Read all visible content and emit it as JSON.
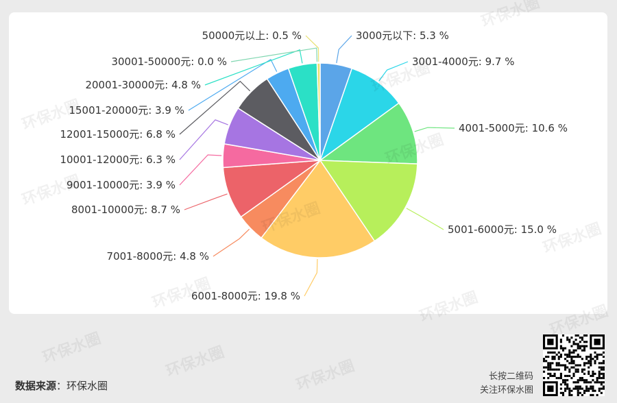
{
  "chart_data": {
    "type": "pie",
    "slices": [
      {
        "label": "3000元以下",
        "value": 5.3,
        "color": "#5ba5e8"
      },
      {
        "label": "3001-4000元",
        "value": 9.7,
        "color": "#2bd6e8"
      },
      {
        "label": "4001-5000元",
        "value": 10.6,
        "color": "#6ee57f"
      },
      {
        "label": "5001-6000元",
        "value": 15.0,
        "color": "#b7ef5b"
      },
      {
        "label": "6001-8000元",
        "value": 19.8,
        "color": "#ffcc66"
      },
      {
        "label": "7001-8000元",
        "value": 4.8,
        "color": "#f78b5f"
      },
      {
        "label": "8001-10000元",
        "value": 8.7,
        "color": "#ec6369"
      },
      {
        "label": "9001-10000元",
        "value": 3.9,
        "color": "#f56aa0"
      },
      {
        "label": "10001-12000元",
        "value": 6.3,
        "color": "#a675e2"
      },
      {
        "label": "12001-15000元",
        "value": 6.8,
        "color": "#5c5c61"
      },
      {
        "label": "15001-20000元",
        "value": 3.9,
        "color": "#4daaf0"
      },
      {
        "label": "20001-30000元",
        "value": 4.8,
        "color": "#2be0c6"
      },
      {
        "label": "30001-50000元",
        "value": 0.0,
        "color": "#7fd6b0"
      },
      {
        "label": "50000元以上",
        "value": 0.5,
        "color": "#e8e070"
      }
    ]
  },
  "footer": {
    "source_label": "数据来源",
    "source_sep": "：",
    "source_value": "环保水圈",
    "qr_line1": "长按二维码",
    "qr_line2": "关注环保水圈"
  },
  "watermark_text": "环保水圈"
}
